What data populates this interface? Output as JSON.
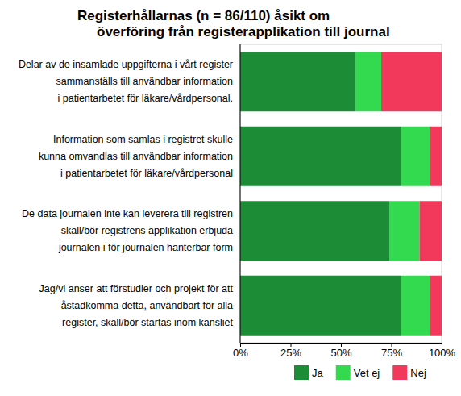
{
  "chart_data": {
    "type": "bar",
    "title": "Registerhållarnas (n = 86/110) åsikt om\növerföring från registerapplikation till journal",
    "orientation": "horizontal",
    "stacked": true,
    "legend": "bottom",
    "categories": [
      "Delar av de insamlade uppgifterna i vårt register\nsammanställs till användbar information\ni patientarbetet för läkare/vårdpersonal.",
      "Information som samlas i registret skulle\nkunna omvandlas till användbar information\ni patientarbetet för läkare/vårdpersonal",
      "De data journalen inte kan leverera till registren\nskall/bör registrens applikation erbjuda\njournalen i för journalen hanterbar form",
      "Jag/vi anser att förstudier och projekt för att\nåstadkomma detta, användbart för alla\nregister, skall/bör startas inom kansliet"
    ],
    "series": [
      {
        "name": "Ja",
        "color": "#1c8c36",
        "values": [
          57,
          80,
          74,
          80
        ]
      },
      {
        "name": "Vet ej",
        "color": "#33d94f",
        "values": [
          13,
          14,
          15,
          14
        ]
      },
      {
        "name": "Nej",
        "color": "#f2395c",
        "values": [
          30,
          6,
          11,
          6
        ]
      }
    ],
    "xlim": [
      0,
      100
    ],
    "xticks": [
      {
        "value": 0,
        "label": "0%"
      },
      {
        "value": 25,
        "label": "25%"
      },
      {
        "value": 50,
        "label": "50%"
      },
      {
        "value": 75,
        "label": "75%"
      },
      {
        "value": 100,
        "label": "100%"
      }
    ]
  }
}
